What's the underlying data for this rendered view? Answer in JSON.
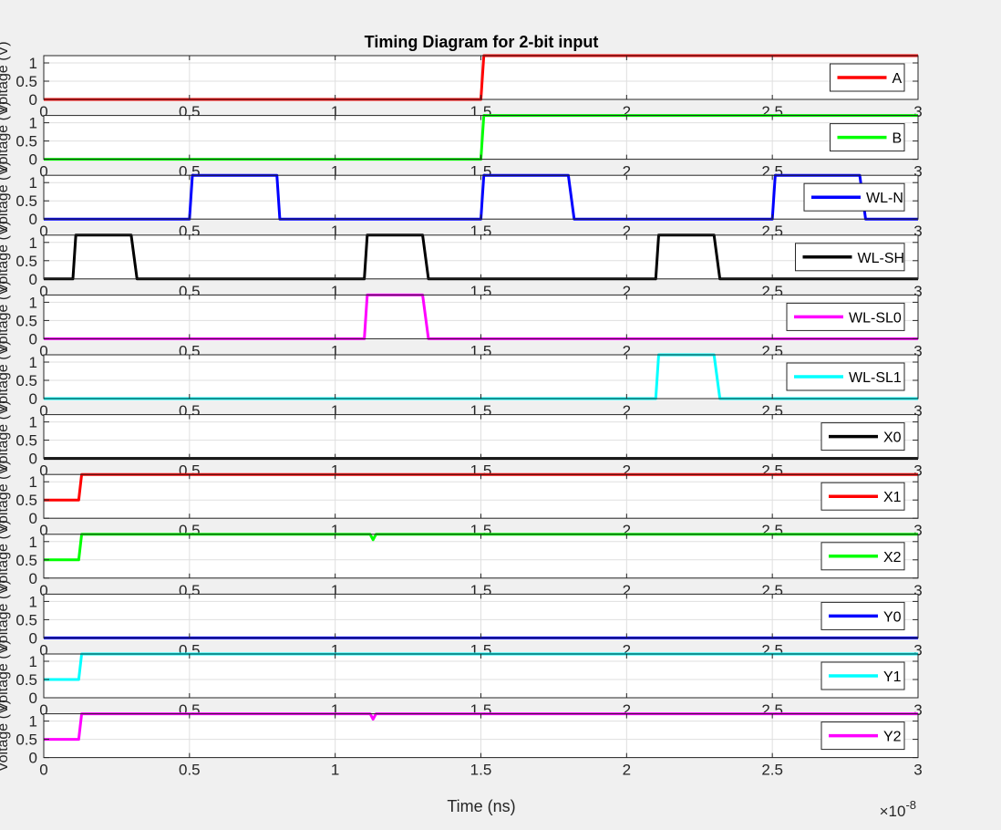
{
  "chart_data": {
    "type": "line",
    "title": "Timing Diagram for 2-bit input",
    "xlabel": "Time (ns)",
    "x_exponent_label": "×10",
    "x_exponent_power": "-8",
    "ylabel": "Voltage (V)",
    "xlim": [
      0,
      3e-08
    ],
    "ylim": [
      0,
      1.2
    ],
    "x_ticks": [
      0,
      5e-09,
      1e-08,
      1.5e-08,
      2e-08,
      2.5e-08,
      3e-08
    ],
    "x_tick_labels": [
      "0",
      "0.5",
      "1",
      "1.5",
      "2",
      "2.5",
      "3"
    ],
    "y_ticks": [
      0,
      0.5,
      1
    ],
    "y_tick_labels": [
      "0",
      "0.5",
      "1"
    ],
    "grid": true,
    "legend_position": "right",
    "series": [
      {
        "name": "A",
        "color": "#ff0000",
        "x": [
          0,
          1.5e-08,
          1.51e-08,
          3e-08
        ],
        "y": [
          0,
          0,
          1.2,
          1.2
        ]
      },
      {
        "name": "B",
        "color": "#00ff00",
        "x": [
          0,
          1.5e-08,
          1.51e-08,
          3e-08
        ],
        "y": [
          0,
          0,
          1.2,
          1.2
        ]
      },
      {
        "name": "WL-N",
        "color": "#0000ff",
        "x": [
          0,
          5e-09,
          5.1e-09,
          8e-09,
          8.1e-09,
          1.5e-08,
          1.51e-08,
          1.8e-08,
          1.82e-08,
          2.5e-08,
          2.51e-08,
          2.8e-08,
          2.82e-08,
          3e-08
        ],
        "y": [
          0,
          0,
          1.2,
          1.2,
          0,
          0,
          1.2,
          1.2,
          0,
          0,
          1.2,
          1.2,
          0,
          0
        ]
      },
      {
        "name": "WL-SH",
        "color": "#000000",
        "x": [
          0,
          1e-09,
          1.1e-09,
          3e-09,
          3.2e-09,
          1.1e-08,
          1.11e-08,
          1.3e-08,
          1.32e-08,
          2.1e-08,
          2.11e-08,
          2.3e-08,
          2.32e-08,
          3e-08
        ],
        "y": [
          0,
          0,
          1.2,
          1.2,
          0,
          0,
          1.2,
          1.2,
          0,
          0,
          1.2,
          1.2,
          0,
          0
        ]
      },
      {
        "name": "WL-SL0",
        "color": "#ff00ff",
        "x": [
          0,
          1.1e-08,
          1.11e-08,
          1.3e-08,
          1.32e-08,
          3e-08
        ],
        "y": [
          0,
          0,
          1.2,
          1.2,
          0,
          0
        ]
      },
      {
        "name": "WL-SL1",
        "color": "#00ffff",
        "x": [
          0,
          2.1e-08,
          2.11e-08,
          2.3e-08,
          2.32e-08,
          3e-08
        ],
        "y": [
          0,
          0,
          1.2,
          1.2,
          0,
          0
        ]
      },
      {
        "name": "X0",
        "color": "#000000",
        "x": [
          0,
          3e-08
        ],
        "y": [
          0,
          0
        ]
      },
      {
        "name": "X1",
        "color": "#ff0000",
        "x": [
          0,
          1.2e-09,
          1.3e-09,
          3e-08
        ],
        "y": [
          0.5,
          0.5,
          1.2,
          1.2
        ]
      },
      {
        "name": "X2",
        "color": "#00ff00",
        "x": [
          0,
          1.2e-09,
          1.3e-09,
          1.12e-08,
          1.13e-08,
          1.14e-08,
          3e-08
        ],
        "y": [
          0.5,
          0.5,
          1.2,
          1.2,
          1.05,
          1.2,
          1.2
        ]
      },
      {
        "name": "Y0",
        "color": "#0000ff",
        "x": [
          0,
          3e-08
        ],
        "y": [
          0,
          0
        ]
      },
      {
        "name": "Y1",
        "color": "#00ffff",
        "x": [
          0,
          1.2e-09,
          1.3e-09,
          3e-08
        ],
        "y": [
          0.5,
          0.5,
          1.2,
          1.2
        ]
      },
      {
        "name": "Y2",
        "color": "#ff00ff",
        "x": [
          0,
          1.2e-09,
          1.3e-09,
          1.12e-08,
          1.13e-08,
          1.14e-08,
          3e-08
        ],
        "y": [
          0.5,
          0.5,
          1.2,
          1.2,
          1.05,
          1.2,
          1.2
        ]
      }
    ]
  }
}
